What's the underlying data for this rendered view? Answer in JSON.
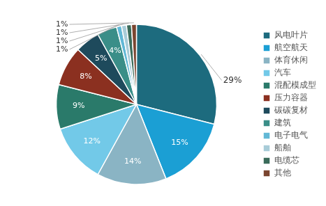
{
  "chart_data": {
    "type": "pie",
    "categories": [
      "风电叶片",
      "航空航天",
      "体育休闲",
      "汽车",
      "混配模成型",
      "压力容器",
      "碳碳复材",
      "建筑",
      "电子电气",
      "船舶",
      "电缆芯",
      "其他"
    ],
    "values": [
      29,
      15,
      14,
      12,
      9,
      8,
      5,
      4,
      1,
      1,
      1,
      1
    ],
    "value_labels": [
      "29%",
      "15%",
      "14%",
      "12%",
      "9%",
      "8%",
      "5%",
      "4%",
      "1%",
      "1%",
      "1%",
      "1%"
    ],
    "colors": [
      "#1d6b7e",
      "#1b9fd4",
      "#8ab4c4",
      "#72c9e8",
      "#2a7a6a",
      "#8b3020",
      "#1e4a5c",
      "#3a8e88",
      "#62b8d6",
      "#a8ccd8",
      "#3a6b5a",
      "#7a4530"
    ],
    "legend": "right",
    "data_labels": true
  }
}
